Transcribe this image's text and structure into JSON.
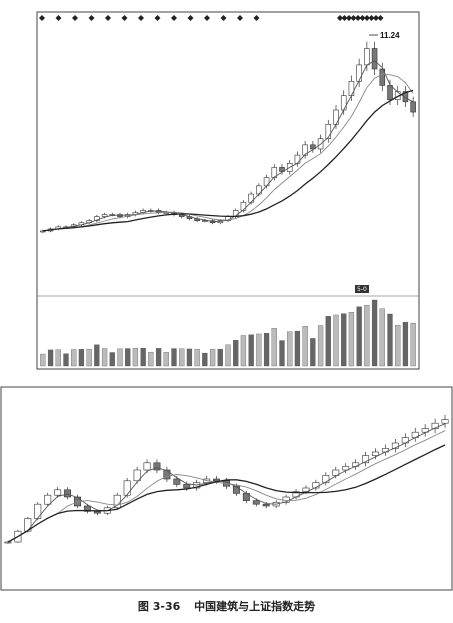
{
  "caption": {
    "figure_no": "图 3-36",
    "title": "中国建筑与上证指数走势"
  },
  "colors": {
    "candle": "#333333",
    "candle_fill_down": "#777777",
    "ma_short": "#555555",
    "ma_mid": "#888888",
    "ma_long": "#222222",
    "volume": "#666666",
    "frame": "#444444"
  },
  "chart_data": [
    {
      "type": "candlestick",
      "panel": "top",
      "subject": "中国建筑",
      "peak_label": "11.24",
      "small_tag": "5-0",
      "y_range": [
        0,
        12
      ],
      "markers_count": 24,
      "close_points": [
        2.1,
        2.2,
        2.3,
        2.3,
        2.4,
        2.5,
        2.6,
        2.8,
        2.9,
        2.9,
        2.8,
        2.9,
        3.0,
        3.1,
        3.1,
        3.0,
        3.0,
        2.9,
        2.8,
        2.7,
        2.6,
        2.6,
        2.5,
        2.6,
        2.8,
        3.1,
        3.5,
        3.9,
        4.3,
        4.7,
        5.2,
        5.0,
        5.4,
        5.8,
        6.3,
        6.1,
        6.6,
        7.3,
        8.0,
        8.7,
        9.4,
        10.2,
        11.0,
        10.0,
        9.2,
        8.5,
        8.9,
        8.4,
        7.9
      ]
    },
    {
      "type": "candlestick",
      "panel": "bottom",
      "subject": "上证指数",
      "y_range": [
        0,
        10
      ],
      "close_points": [
        2.0,
        2.6,
        3.3,
        4.1,
        4.6,
        4.9,
        4.5,
        4.0,
        3.7,
        3.6,
        3.9,
        4.6,
        5.4,
        6.0,
        6.4,
        6.0,
        5.5,
        5.2,
        5.0,
        5.3,
        5.5,
        5.4,
        5.1,
        4.7,
        4.3,
        4.1,
        4.0,
        4.2,
        4.5,
        4.8,
        5.0,
        5.3,
        5.7,
        6.0,
        6.2,
        6.4,
        6.8,
        7.0,
        7.2,
        7.5,
        7.8,
        8.1,
        8.3,
        8.6,
        8.8
      ]
    }
  ]
}
